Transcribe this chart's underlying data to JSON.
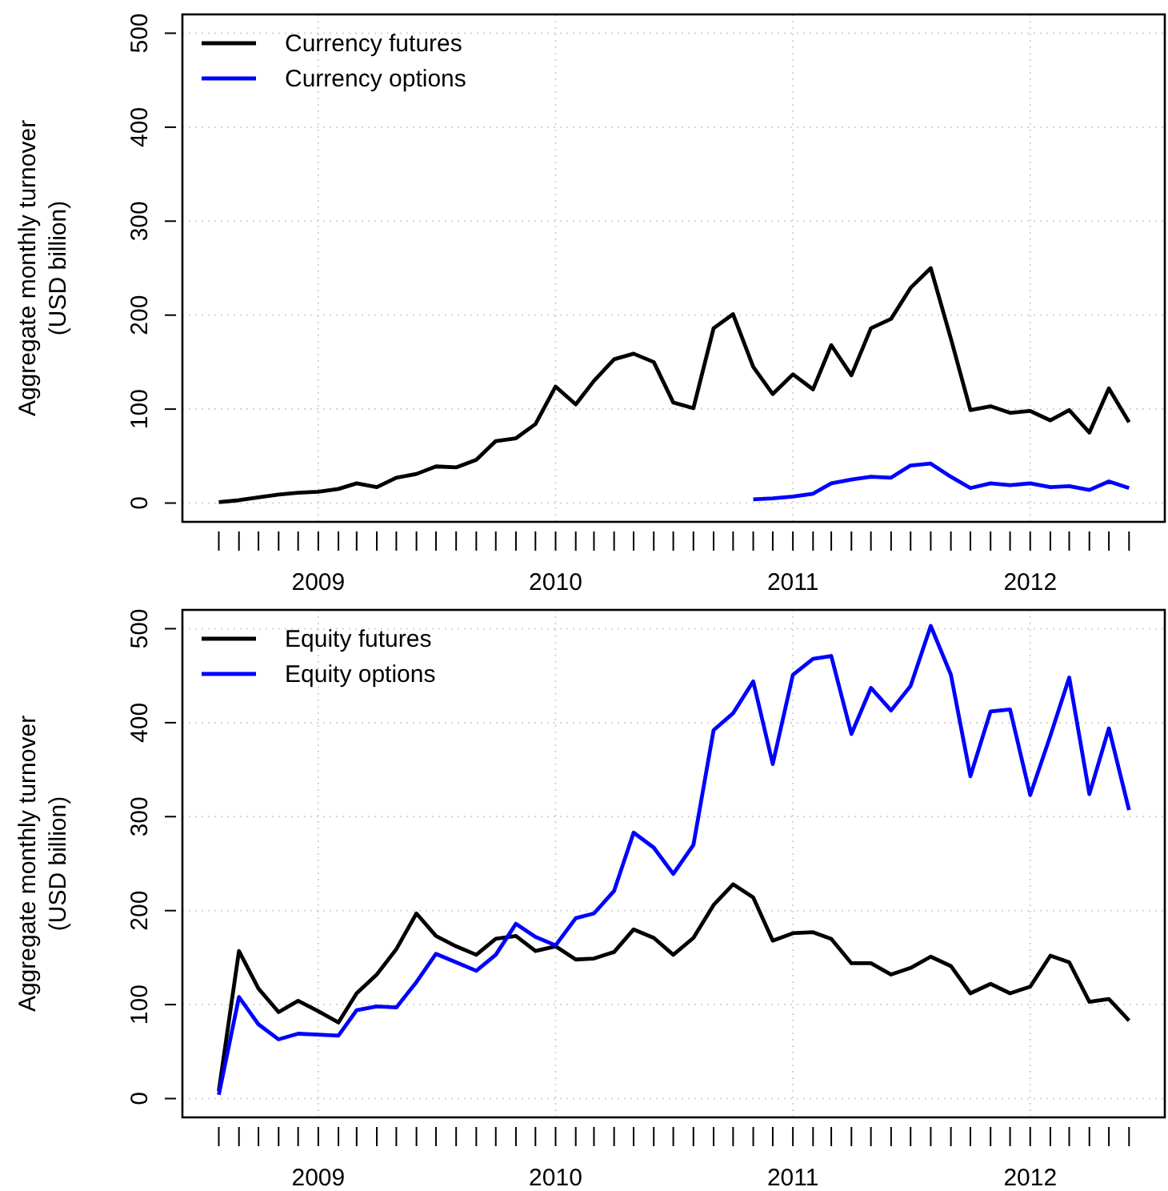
{
  "chart_data": [
    {
      "type": "line",
      "ylabel": "Aggregate monthly turnover\n(USD billion)",
      "x": [
        "2008-08",
        "2008-09",
        "2008-10",
        "2008-11",
        "2008-12",
        "2009-01",
        "2009-02",
        "2009-03",
        "2009-04",
        "2009-05",
        "2009-06",
        "2009-07",
        "2009-08",
        "2009-09",
        "2009-10",
        "2009-11",
        "2009-12",
        "2010-01",
        "2010-02",
        "2010-03",
        "2010-04",
        "2010-05",
        "2010-06",
        "2010-07",
        "2010-08",
        "2010-09",
        "2010-10",
        "2010-11",
        "2010-12",
        "2011-01",
        "2011-02",
        "2011-03",
        "2011-04",
        "2011-05",
        "2011-06",
        "2011-07",
        "2011-08",
        "2011-09",
        "2011-10",
        "2011-11",
        "2011-12",
        "2012-01",
        "2012-02",
        "2012-03",
        "2012-04",
        "2012-05",
        "2012-06"
      ],
      "series": [
        {
          "name": "Currency futures",
          "color": "#000000",
          "values": [
            1,
            3,
            6,
            9,
            11,
            12,
            15,
            21,
            17,
            27,
            31,
            39,
            38,
            46,
            66,
            69,
            84,
            124,
            105,
            130,
            153,
            159,
            150,
            107,
            101,
            186,
            201,
            145,
            116,
            137,
            121,
            168,
            136,
            186,
            196,
            229,
            250,
            175,
            99,
            103,
            96,
            98,
            88,
            99,
            75,
            122,
            86
          ]
        },
        {
          "name": "Currency options",
          "color": "#0000ff",
          "values": [
            null,
            null,
            null,
            null,
            null,
            null,
            null,
            null,
            null,
            null,
            null,
            null,
            null,
            null,
            null,
            null,
            null,
            null,
            null,
            null,
            null,
            null,
            null,
            null,
            null,
            null,
            null,
            4,
            5,
            7,
            10,
            21,
            25,
            28,
            27,
            40,
            42,
            28,
            16,
            21,
            19,
            21,
            17,
            18,
            14,
            23,
            16
          ]
        }
      ],
      "xlim": [
        "2008-06-06",
        "2012-07-26"
      ],
      "xticks": [
        {
          "value": "2008-08",
          "label": null
        },
        {
          "value": "2008-09",
          "label": null
        },
        {
          "value": "2008-10",
          "label": null
        },
        {
          "value": "2008-11",
          "label": null
        },
        {
          "value": "2008-12",
          "label": null
        },
        {
          "value": "2009-01",
          "label": "2009"
        },
        {
          "value": "2009-02",
          "label": null
        },
        {
          "value": "2009-03",
          "label": null
        },
        {
          "value": "2009-04",
          "label": null
        },
        {
          "value": "2009-05",
          "label": null
        },
        {
          "value": "2009-06",
          "label": null
        },
        {
          "value": "2009-07",
          "label": null
        },
        {
          "value": "2009-08",
          "label": null
        },
        {
          "value": "2009-09",
          "label": null
        },
        {
          "value": "2009-10",
          "label": null
        },
        {
          "value": "2009-11",
          "label": null
        },
        {
          "value": "2009-12",
          "label": null
        },
        {
          "value": "2010-01",
          "label": "2010"
        },
        {
          "value": "2010-02",
          "label": null
        },
        {
          "value": "2010-03",
          "label": null
        },
        {
          "value": "2010-04",
          "label": null
        },
        {
          "value": "2010-05",
          "label": null
        },
        {
          "value": "2010-06",
          "label": null
        },
        {
          "value": "2010-07",
          "label": null
        },
        {
          "value": "2010-08",
          "label": null
        },
        {
          "value": "2010-09",
          "label": null
        },
        {
          "value": "2010-10",
          "label": null
        },
        {
          "value": "2010-11",
          "label": null
        },
        {
          "value": "2010-12",
          "label": null
        },
        {
          "value": "2011-01",
          "label": "2011"
        },
        {
          "value": "2011-02",
          "label": null
        },
        {
          "value": "2011-03",
          "label": null
        },
        {
          "value": "2011-04",
          "label": null
        },
        {
          "value": "2011-05",
          "label": null
        },
        {
          "value": "2011-06",
          "label": null
        },
        {
          "value": "2011-07",
          "label": null
        },
        {
          "value": "2011-08",
          "label": null
        },
        {
          "value": "2011-09",
          "label": null
        },
        {
          "value": "2011-10",
          "label": null
        },
        {
          "value": "2011-11",
          "label": null
        },
        {
          "value": "2011-12",
          "label": null
        },
        {
          "value": "2012-01",
          "label": "2012"
        },
        {
          "value": "2012-02",
          "label": null
        },
        {
          "value": "2012-03",
          "label": null
        },
        {
          "value": "2012-04",
          "label": null
        },
        {
          "value": "2012-05",
          "label": null
        },
        {
          "value": "2012-06",
          "label": null
        }
      ],
      "ylim": [
        -20,
        520
      ],
      "yticks": [
        0,
        100,
        200,
        300,
        400,
        500
      ],
      "grid": true,
      "legend": "top left"
    },
    {
      "type": "line",
      "ylabel": "Aggregate monthly turnover\n(USD billion)",
      "x": [
        "2008-08",
        "2008-09",
        "2008-10",
        "2008-11",
        "2008-12",
        "2009-01",
        "2009-02",
        "2009-03",
        "2009-04",
        "2009-05",
        "2009-06",
        "2009-07",
        "2009-08",
        "2009-09",
        "2009-10",
        "2009-11",
        "2009-12",
        "2010-01",
        "2010-02",
        "2010-03",
        "2010-04",
        "2010-05",
        "2010-06",
        "2010-07",
        "2010-08",
        "2010-09",
        "2010-10",
        "2010-11",
        "2010-12",
        "2011-01",
        "2011-02",
        "2011-03",
        "2011-04",
        "2011-05",
        "2011-06",
        "2011-07",
        "2011-08",
        "2011-09",
        "2011-10",
        "2011-11",
        "2011-12",
        "2012-01",
        "2012-02",
        "2012-03",
        "2012-04",
        "2012-05",
        "2012-06"
      ],
      "series": [
        {
          "name": "Equity futures",
          "color": "#000000",
          "values": [
            8,
            157,
            117,
            92,
            104,
            93,
            81,
            112,
            132,
            159,
            197,
            173,
            162,
            153,
            170,
            173,
            157,
            162,
            148,
            149,
            156,
            180,
            171,
            153,
            171,
            206,
            228,
            214,
            168,
            176,
            177,
            170,
            144,
            144,
            132,
            139,
            151,
            141,
            112,
            122,
            112,
            119,
            152,
            145,
            103,
            106,
            83
          ]
        },
        {
          "name": "Equity options",
          "color": "#0000ff",
          "values": [
            4,
            108,
            79,
            63,
            69,
            68,
            67,
            94,
            98,
            97,
            124,
            154,
            145,
            136,
            153,
            186,
            172,
            163,
            192,
            197,
            221,
            283,
            267,
            239,
            270,
            392,
            410,
            444,
            356,
            451,
            468,
            471,
            388,
            437,
            413,
            439,
            503,
            451,
            343,
            412,
            414,
            323,
            386,
            448,
            324,
            394,
            307
          ]
        }
      ],
      "xlim": [
        "2008-06-06",
        "2012-07-26"
      ],
      "xticks": [
        {
          "value": "2008-08",
          "label": null
        },
        {
          "value": "2008-09",
          "label": null
        },
        {
          "value": "2008-10",
          "label": null
        },
        {
          "value": "2008-11",
          "label": null
        },
        {
          "value": "2008-12",
          "label": null
        },
        {
          "value": "2009-01",
          "label": "2009"
        },
        {
          "value": "2009-02",
          "label": null
        },
        {
          "value": "2009-03",
          "label": null
        },
        {
          "value": "2009-04",
          "label": null
        },
        {
          "value": "2009-05",
          "label": null
        },
        {
          "value": "2009-06",
          "label": null
        },
        {
          "value": "2009-07",
          "label": null
        },
        {
          "value": "2009-08",
          "label": null
        },
        {
          "value": "2009-09",
          "label": null
        },
        {
          "value": "2009-10",
          "label": null
        },
        {
          "value": "2009-11",
          "label": null
        },
        {
          "value": "2009-12",
          "label": null
        },
        {
          "value": "2010-01",
          "label": "2010"
        },
        {
          "value": "2010-02",
          "label": null
        },
        {
          "value": "2010-03",
          "label": null
        },
        {
          "value": "2010-04",
          "label": null
        },
        {
          "value": "2010-05",
          "label": null
        },
        {
          "value": "2010-06",
          "label": null
        },
        {
          "value": "2010-07",
          "label": null
        },
        {
          "value": "2010-08",
          "label": null
        },
        {
          "value": "2010-09",
          "label": null
        },
        {
          "value": "2010-10",
          "label": null
        },
        {
          "value": "2010-11",
          "label": null
        },
        {
          "value": "2010-12",
          "label": null
        },
        {
          "value": "2011-01",
          "label": "2011"
        },
        {
          "value": "2011-02",
          "label": null
        },
        {
          "value": "2011-03",
          "label": null
        },
        {
          "value": "2011-04",
          "label": null
        },
        {
          "value": "2011-05",
          "label": null
        },
        {
          "value": "2011-06",
          "label": null
        },
        {
          "value": "2011-07",
          "label": null
        },
        {
          "value": "2011-08",
          "label": null
        },
        {
          "value": "2011-09",
          "label": null
        },
        {
          "value": "2011-10",
          "label": null
        },
        {
          "value": "2011-11",
          "label": null
        },
        {
          "value": "2011-12",
          "label": null
        },
        {
          "value": "2012-01",
          "label": "2012"
        },
        {
          "value": "2012-02",
          "label": null
        },
        {
          "value": "2012-03",
          "label": null
        },
        {
          "value": "2012-04",
          "label": null
        },
        {
          "value": "2012-05",
          "label": null
        },
        {
          "value": "2012-06",
          "label": null
        }
      ],
      "ylim": [
        -20,
        520
      ],
      "yticks": [
        0,
        100,
        200,
        300,
        400,
        500
      ],
      "grid": true,
      "legend": "top left"
    }
  ]
}
